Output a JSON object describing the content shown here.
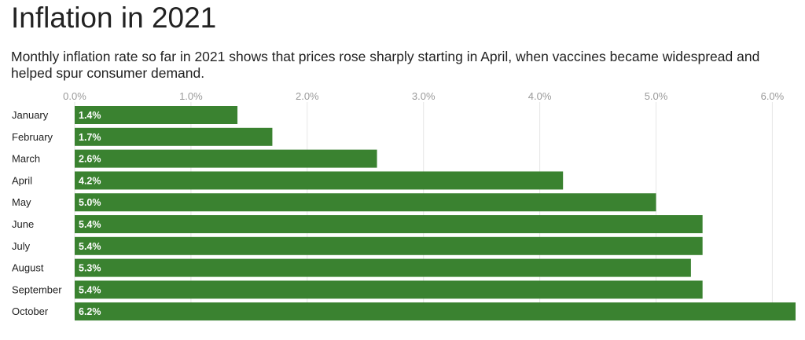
{
  "chart_data": {
    "type": "bar",
    "orientation": "horizontal",
    "title": "Inflation in 2021",
    "subtitle": "Monthly inflation rate so far in 2021 shows that prices rose sharply starting in April, when vaccines became widespread and helped spur consumer demand.",
    "categories": [
      "January",
      "February",
      "March",
      "April",
      "May",
      "June",
      "July",
      "August",
      "September",
      "October"
    ],
    "values": [
      1.4,
      1.7,
      2.6,
      4.2,
      5.0,
      5.4,
      5.4,
      5.3,
      5.4,
      6.2
    ],
    "value_labels": [
      "1.4%",
      "1.7%",
      "2.6%",
      "4.2%",
      "5.0%",
      "5.4%",
      "5.4%",
      "5.3%",
      "5.4%",
      "6.2%"
    ],
    "xticks": [
      0,
      1,
      2,
      3,
      4,
      5,
      6
    ],
    "xtick_labels": [
      "0.0%",
      "1.0%",
      "2.0%",
      "3.0%",
      "4.0%",
      "5.0%",
      "6.0%"
    ],
    "xlim": [
      0,
      6.2
    ],
    "xaxis_position": "top",
    "grid": true,
    "xlabel": "",
    "ylabel": "",
    "bar_color": "#3a8230",
    "grid_color": "#e6e6e6"
  }
}
